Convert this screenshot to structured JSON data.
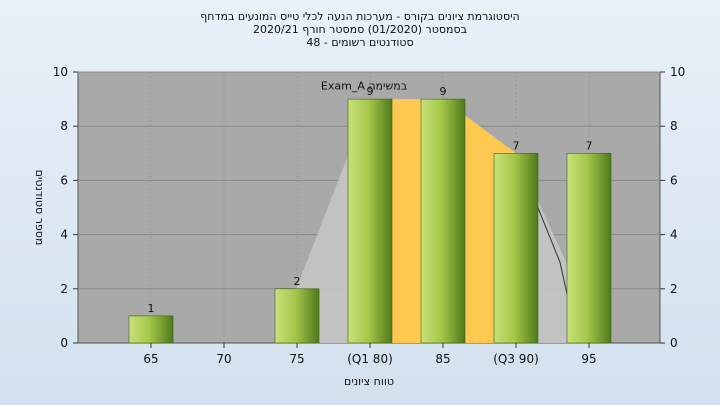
{
  "chart_data": {
    "type": "bar",
    "title_lines": [
      "היסטוגרמת ציונים בקורס - מערכות הנעה לכלי טייס המונעים במדחף",
      "בסמסטר  (01/2020)  סמסטר חורף  2020/21",
      "סטודנטים רשומים - 48"
    ],
    "xlabel": "טווח ציונים",
    "ylabel": "מספר סטודנטים",
    "categories": [
      "65",
      "70",
      "75",
      "(Q1 80)",
      "85",
      "(Q3 90)",
      "95"
    ],
    "values": [
      1,
      0,
      2,
      9,
      9,
      7,
      7
    ],
    "data_labels": [
      "1",
      "",
      "2",
      "9",
      "9",
      "7",
      "7"
    ],
    "ylim": [
      0,
      10
    ],
    "yticks": [
      0,
      2,
      4,
      6,
      8,
      10
    ],
    "annotation": "Exam_A במשימה",
    "box_range": {
      "q1": 80,
      "q3": 90
    },
    "colors": {
      "plot_bg": "#a9a9a9",
      "bar_light": "#c8e07a",
      "bar_dark": "#4f7a1c",
      "quartile_fill": "#ffc850",
      "range_fill": "#c4c4c4"
    },
    "grid": true
  }
}
